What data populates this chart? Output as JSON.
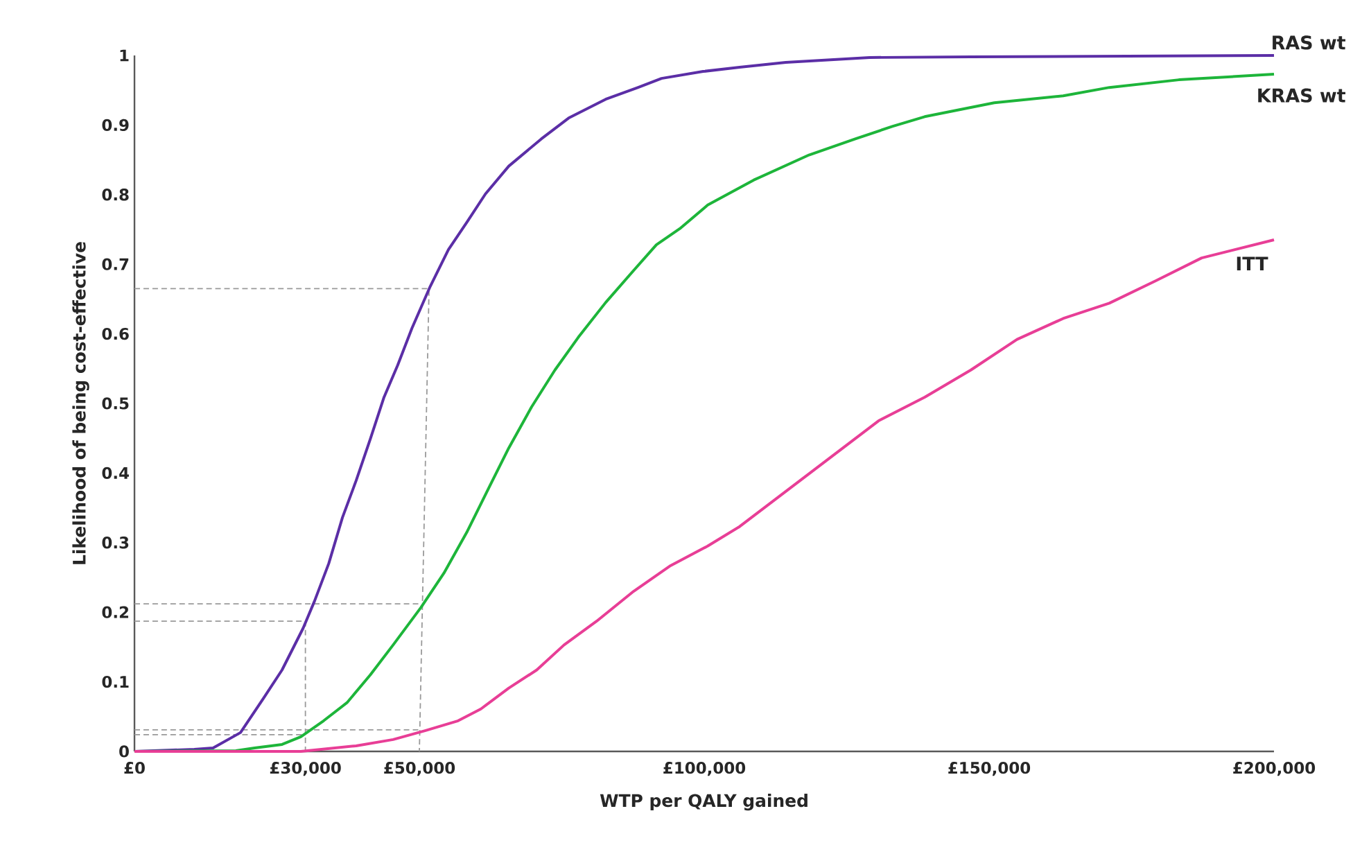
{
  "chart_data": {
    "type": "line",
    "xlabel": "WTP per QALY gained",
    "ylabel": "Likelihood of being cost-effective",
    "xlim": [
      0,
      200000
    ],
    "ylim": [
      0,
      1
    ],
    "xticks": [
      {
        "value": 0,
        "label": "£0"
      },
      {
        "value": 30000,
        "label": "£30,000"
      },
      {
        "value": 50000,
        "label": "£50,000"
      },
      {
        "value": 100000,
        "label": "£100,000"
      },
      {
        "value": 150000,
        "label": "£150,000"
      },
      {
        "value": 200000,
        "label": "£200,000"
      }
    ],
    "yticks": [
      0,
      0.1,
      0.2,
      0.3,
      0.4,
      0.5,
      0.6,
      0.7,
      0.8,
      0.9,
      1
    ],
    "grid": false,
    "legend": false,
    "marker": "none",
    "series": [
      {
        "type": "line",
        "line_style": "dashed",
        "color": "#999999",
        "x": [
          0,
          51700,
          50000
        ],
        "values": [
          0.665,
          0.665,
          0
        ]
      },
      {
        "type": "line",
        "line_style": "dashed",
        "color": "#999999",
        "x": [
          0,
          50000
        ],
        "values": [
          0.212,
          0.212
        ]
      },
      {
        "type": "line",
        "line_style": "dashed",
        "color": "#999999",
        "x": [
          0,
          30000,
          30000
        ],
        "values": [
          0.187,
          0.187,
          0
        ]
      },
      {
        "type": "line",
        "line_style": "dashed",
        "color": "#999999",
        "x": [
          0,
          50000
        ],
        "values": [
          0.031,
          0.031
        ]
      },
      {
        "type": "line",
        "line_style": "dashed",
        "color": "#999999",
        "x": [
          0,
          30000
        ],
        "values": [
          0.024,
          0.024
        ]
      },
      {
        "name": "RAS wt",
        "line_style": "solid",
        "color": "#5b2ea6",
        "x": [
          0,
          10500,
          13800,
          18600,
          22700,
          25900,
          29600,
          31600,
          34100,
          36500,
          38900,
          41400,
          43800,
          46200,
          48700,
          51900,
          55100,
          58400,
          61600,
          65700,
          71400,
          76200,
          82700,
          88400,
          92500,
          99800,
          106200,
          114300,
          129000,
          146800,
          200000
        ],
        "values": [
          0,
          0.003,
          0.005,
          0.027,
          0.077,
          0.117,
          0.177,
          0.216,
          0.27,
          0.336,
          0.389,
          0.449,
          0.509,
          0.555,
          0.608,
          0.668,
          0.721,
          0.761,
          0.801,
          0.841,
          0.88,
          0.91,
          0.937,
          0.954,
          0.967,
          0.977,
          0.983,
          0.99,
          0.997,
          0.998,
          1
        ]
      },
      {
        "name": "KRAS wt",
        "line_style": "solid",
        "color": "#1db53a",
        "x": [
          0,
          17800,
          21100,
          25900,
          29200,
          33200,
          37300,
          41400,
          45400,
          50300,
          54300,
          58400,
          62400,
          65700,
          69700,
          73800,
          77900,
          82700,
          87600,
          91600,
          95700,
          100600,
          108700,
          118400,
          126500,
          133000,
          138700,
          150900,
          163000,
          171100,
          183300,
          200000
        ],
        "values": [
          0,
          0.001,
          0.005,
          0.01,
          0.021,
          0.044,
          0.07,
          0.11,
          0.153,
          0.207,
          0.256,
          0.316,
          0.382,
          0.436,
          0.495,
          0.548,
          0.595,
          0.645,
          0.691,
          0.728,
          0.751,
          0.785,
          0.821,
          0.857,
          0.88,
          0.898,
          0.912,
          0.932,
          0.942,
          0.954,
          0.965,
          0.973
        ]
      },
      {
        "name": "ITT",
        "line_style": "solid",
        "color": "#e83e96",
        "x": [
          0,
          29200,
          38900,
          45400,
          51100,
          56800,
          60800,
          65700,
          70600,
          75400,
          81100,
          87600,
          94100,
          100600,
          106200,
          118400,
          130600,
          138700,
          146800,
          154900,
          163000,
          171100,
          179200,
          187300,
          200000
        ],
        "values": [
          0,
          0,
          0.008,
          0.017,
          0.03,
          0.044,
          0.061,
          0.091,
          0.117,
          0.153,
          0.187,
          0.23,
          0.267,
          0.295,
          0.323,
          0.399,
          0.475,
          0.509,
          0.548,
          0.592,
          0.622,
          0.644,
          0.676,
          0.709,
          0.735
        ]
      }
    ]
  }
}
